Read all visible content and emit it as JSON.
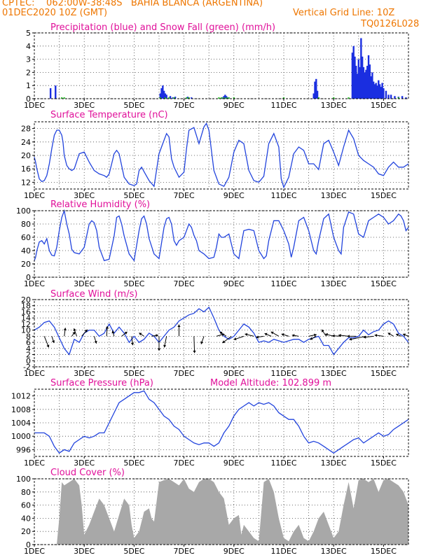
{
  "header": {
    "line1": "CPTEC:    062:00W-38:48S   BAHIA BLANCA (ARGENTINA)",
    "line2": "01DEC2020 10Z (GMT)",
    "grid_note": "Vertical Grid Line: 10Z",
    "code": "TQ0126L028"
  },
  "colors": {
    "header": "#ee7600",
    "title": "#e0109a",
    "line": "#2244dd",
    "bar": "#1a2ee0",
    "snow": "#22bb22",
    "cloud": "#a8a8a8",
    "axis": "#000000"
  },
  "x_axis": {
    "start_day": 1,
    "end_day": 16,
    "ticks": [
      {
        "day": 1,
        "label": "1DEC"
      },
      {
        "day": 3,
        "label": "3DEC"
      },
      {
        "day": 5,
        "label": "5DEC"
      },
      {
        "day": 7,
        "label": "7DEC"
      },
      {
        "day": 9,
        "label": "9DEC"
      },
      {
        "day": 11,
        "label": "11DEC"
      },
      {
        "day": 13,
        "label": "13DEC"
      },
      {
        "day": 15,
        "label": "15DEC"
      }
    ]
  },
  "chart_data": [
    {
      "id": "precip",
      "type": "bar",
      "title": "Precipitation (blue) and Snow Fall (green) (mm/h)",
      "ylim": [
        0,
        5
      ],
      "yticks": [
        0,
        1,
        2,
        3,
        4,
        5
      ],
      "series": [
        {
          "name": "Precipitation",
          "color": "#1a2ee0",
          "x": [
            1.65,
            1.85,
            6.05,
            6.1,
            6.15,
            6.2,
            6.25,
            6.3,
            6.45,
            6.55,
            6.65,
            7.15,
            7.3,
            8.55,
            8.6,
            8.65,
            8.7,
            8.75,
            12.2,
            12.25,
            12.3,
            12.35,
            13.75,
            13.8,
            13.85,
            13.9,
            13.95,
            14.0,
            14.05,
            14.1,
            14.15,
            14.2,
            14.25,
            14.3,
            14.35,
            14.4,
            14.45,
            14.5,
            14.55,
            14.6,
            14.65,
            14.7,
            14.75,
            14.8,
            14.85,
            14.9,
            14.95,
            15.0,
            15.1,
            15.2,
            15.3,
            15.45,
            15.6,
            15.75,
            15.9
          ],
          "values": [
            0.8,
            1.0,
            0.4,
            0.8,
            1.0,
            0.6,
            0.4,
            0.3,
            0.2,
            0.1,
            0.15,
            0.15,
            0.1,
            0.1,
            0.2,
            0.3,
            0.2,
            0.1,
            0.4,
            1.3,
            1.5,
            0.6,
            3.5,
            4.0,
            3.2,
            2.5,
            1.9,
            3.0,
            2.4,
            4.6,
            3.2,
            2.4,
            2.0,
            2.2,
            2.5,
            3.3,
            2.6,
            1.7,
            2.0,
            1.3,
            1.1,
            1.2,
            1.0,
            1.4,
            1.1,
            0.9,
            1.2,
            0.8,
            0.6,
            0.3,
            0.3,
            0.2,
            0.15,
            0.2,
            0.1
          ]
        },
        {
          "name": "Snow Fall",
          "color": "#22bb22",
          "x": [
            2.1,
            2.2,
            6.05,
            6.25,
            6.4,
            6.6,
            7.1,
            7.2,
            8.4,
            8.5,
            8.6,
            8.7,
            8.8,
            9.0,
            11.0,
            12.4,
            13.0,
            13.6,
            15.6
          ],
          "values": [
            0.1,
            0.1,
            0.1,
            0.1,
            0.1,
            0.1,
            0.1,
            0.1,
            0.1,
            0.1,
            0.1,
            0.1,
            0.1,
            0.1,
            0.1,
            0.1,
            0.1,
            0.1,
            0.1
          ]
        }
      ]
    },
    {
      "id": "temp",
      "type": "line",
      "title": "Surface Temperature (nC)",
      "ylim": [
        10,
        30
      ],
      "yticks": [
        12,
        16,
        20,
        24,
        28
      ],
      "x": [
        1.0,
        1.05,
        1.1,
        1.2,
        1.3,
        1.4,
        1.5,
        1.6,
        1.7,
        1.8,
        1.9,
        2.0,
        2.1,
        2.15,
        2.2,
        2.3,
        2.4,
        2.5,
        2.6,
        2.8,
        3.0,
        3.2,
        3.4,
        3.6,
        3.8,
        3.9,
        4.0,
        4.1,
        4.2,
        4.3,
        4.4,
        4.6,
        4.8,
        5.0,
        5.1,
        5.2,
        5.3,
        5.45,
        5.6,
        5.8,
        6.0,
        6.2,
        6.3,
        6.4,
        6.5,
        6.6,
        6.8,
        7.0,
        7.1,
        7.2,
        7.4,
        7.6,
        7.8,
        7.9,
        8.0,
        8.2,
        8.4,
        8.6,
        8.8,
        9.0,
        9.2,
        9.4,
        9.6,
        9.8,
        10.0,
        10.2,
        10.4,
        10.6,
        10.8,
        10.9,
        11.0,
        11.2,
        11.4,
        11.6,
        11.8,
        12.0,
        12.2,
        12.4,
        12.6,
        12.8,
        13.0,
        13.2,
        13.4,
        13.6,
        13.8,
        14.0,
        14.2,
        14.4,
        14.6,
        14.8,
        15.0,
        15.2,
        15.4,
        15.6,
        15.8,
        16.0
      ],
      "values": [
        19.5,
        18,
        16,
        13,
        12.2,
        12.5,
        14,
        17.5,
        22,
        26,
        27.5,
        27.5,
        26,
        24,
        20,
        17,
        16,
        15.5,
        16,
        20.5,
        21,
        18,
        15.5,
        14.5,
        14,
        13.5,
        14.5,
        17.5,
        20.5,
        21.5,
        20.5,
        13.5,
        11.5,
        11,
        11.5,
        15.5,
        16.5,
        14.5,
        12.5,
        10.8,
        20.5,
        24.5,
        26.5,
        25.5,
        19,
        16.5,
        13.5,
        15,
        22,
        27.5,
        28.3,
        23.5,
        28.5,
        29.5,
        27.5,
        15.5,
        11.5,
        10.8,
        13.5,
        21,
        24.5,
        23.5,
        15.5,
        12.5,
        12,
        13.8,
        23.5,
        26.5,
        22.5,
        13,
        10.5,
        13.5,
        20.5,
        22.5,
        21.5,
        17.5,
        17.5,
        15.8,
        23.5,
        24.5,
        21,
        17,
        22.5,
        27.5,
        25,
        20,
        18.5,
        17.5,
        16.5,
        14.5,
        14,
        16.5,
        18,
        16.5,
        16.5,
        17.5
      ]
    },
    {
      "id": "rh",
      "type": "line",
      "title": "Relative Humidity (%)",
      "ylim": [
        0,
        100
      ],
      "yticks": [
        0,
        20,
        40,
        60,
        80,
        100
      ],
      "x": [
        1.0,
        1.05,
        1.1,
        1.2,
        1.3,
        1.4,
        1.5,
        1.6,
        1.7,
        1.8,
        1.9,
        2.0,
        2.1,
        2.2,
        2.3,
        2.4,
        2.5,
        2.6,
        2.8,
        3.0,
        3.2,
        3.3,
        3.4,
        3.5,
        3.6,
        3.8,
        4.0,
        4.2,
        4.3,
        4.4,
        4.5,
        4.6,
        4.8,
        5.0,
        5.2,
        5.3,
        5.4,
        5.5,
        5.6,
        5.8,
        6.0,
        6.2,
        6.3,
        6.4,
        6.5,
        6.6,
        6.7,
        6.8,
        7.0,
        7.2,
        7.3,
        7.4,
        7.5,
        7.6,
        7.8,
        8.0,
        8.2,
        8.3,
        8.4,
        8.5,
        8.6,
        8.8,
        9.0,
        9.2,
        9.3,
        9.4,
        9.6,
        9.8,
        10.0,
        10.2,
        10.3,
        10.4,
        10.6,
        10.8,
        11.0,
        11.2,
        11.3,
        11.4,
        11.6,
        11.8,
        12.0,
        12.2,
        12.3,
        12.4,
        12.6,
        12.8,
        13.0,
        13.2,
        13.3,
        13.4,
        13.6,
        13.8,
        14.0,
        14.2,
        14.4,
        14.6,
        14.8,
        15.0,
        15.2,
        15.4,
        15.6,
        15.7,
        15.8,
        15.9,
        16.0
      ],
      "values": [
        25,
        30,
        40,
        53,
        55,
        50,
        58,
        40,
        33,
        32,
        45,
        70,
        90,
        100,
        80,
        65,
        42,
        37,
        35,
        45,
        80,
        85,
        82,
        70,
        45,
        25,
        27,
        62,
        90,
        92,
        80,
        62,
        35,
        25,
        70,
        88,
        92,
        80,
        58,
        35,
        28,
        75,
        88,
        90,
        80,
        55,
        48,
        55,
        60,
        80,
        75,
        63,
        55,
        40,
        35,
        28,
        30,
        45,
        65,
        60,
        60,
        65,
        35,
        28,
        50,
        70,
        72,
        70,
        40,
        28,
        32,
        55,
        85,
        85,
        70,
        50,
        30,
        45,
        85,
        90,
        70,
        40,
        35,
        55,
        88,
        95,
        60,
        40,
        35,
        75,
        98,
        95,
        65,
        60,
        85,
        90,
        95,
        90,
        80,
        85,
        95,
        92,
        85,
        70,
        75
      ]
    },
    {
      "id": "wind",
      "type": "line",
      "title": "Surface Wind (m/s)",
      "ylim": [
        -2,
        20
      ],
      "yticks": [
        -2,
        0,
        2,
        4,
        6,
        8,
        10,
        12,
        14,
        16,
        18,
        20
      ],
      "x": [
        1.0,
        1.2,
        1.4,
        1.6,
        1.8,
        2.0,
        2.2,
        2.4,
        2.6,
        2.8,
        3.0,
        3.2,
        3.4,
        3.6,
        3.8,
        4.0,
        4.2,
        4.4,
        4.6,
        4.8,
        5.0,
        5.2,
        5.4,
        5.6,
        5.8,
        6.0,
        6.2,
        6.4,
        6.6,
        6.8,
        7.0,
        7.2,
        7.4,
        7.6,
        7.8,
        8.0,
        8.2,
        8.4,
        8.6,
        8.8,
        9.0,
        9.2,
        9.4,
        9.6,
        9.8,
        10.0,
        10.2,
        10.4,
        10.6,
        10.8,
        11.0,
        11.2,
        11.4,
        11.6,
        11.8,
        12.0,
        12.2,
        12.4,
        12.6,
        12.8,
        13.0,
        13.2,
        13.4,
        13.6,
        13.8,
        14.0,
        14.2,
        14.4,
        14.6,
        14.8,
        15.0,
        15.2,
        15.4,
        15.6,
        15.8,
        16.0
      ],
      "values": [
        10,
        11,
        12.5,
        13,
        11,
        7.5,
        4,
        2,
        7,
        6,
        9,
        10,
        10,
        8,
        9,
        12,
        9,
        11,
        9,
        6,
        8,
        6,
        7,
        9,
        8,
        6,
        8,
        10,
        11,
        13,
        14,
        15,
        15.5,
        17,
        16,
        17.5,
        14,
        10,
        8,
        7,
        8,
        10,
        12,
        11,
        9,
        6,
        6.5,
        6,
        7,
        6.5,
        6,
        6.5,
        7,
        7,
        6,
        7,
        7.5,
        8,
        5,
        5,
        2,
        4,
        6,
        7.5,
        7.5,
        8,
        10,
        8.5,
        9.5,
        10,
        12,
        13,
        12,
        9,
        8,
        6
      ]
    },
    {
      "id": "pressure",
      "type": "line",
      "title": "Surface Pressure (hPa)",
      "subtitle": "Model Altitude: 102.899 m",
      "ylim": [
        994,
        1014
      ],
      "yticks": [
        996,
        1000,
        1004,
        1008,
        1012
      ],
      "x": [
        1.0,
        1.2,
        1.4,
        1.6,
        1.8,
        2.0,
        2.2,
        2.4,
        2.6,
        2.8,
        3.0,
        3.2,
        3.4,
        3.6,
        3.8,
        4.0,
        4.2,
        4.4,
        4.6,
        4.8,
        5.0,
        5.2,
        5.4,
        5.6,
        5.8,
        6.0,
        6.2,
        6.4,
        6.6,
        6.8,
        7.0,
        7.2,
        7.4,
        7.6,
        7.8,
        8.0,
        8.2,
        8.4,
        8.6,
        8.8,
        9.0,
        9.2,
        9.4,
        9.6,
        9.8,
        10.0,
        10.2,
        10.4,
        10.6,
        10.8,
        11.0,
        11.2,
        11.4,
        11.6,
        11.8,
        12.0,
        12.2,
        12.4,
        12.6,
        12.8,
        13.0,
        13.2,
        13.4,
        13.6,
        13.8,
        14.0,
        14.2,
        14.4,
        14.6,
        14.8,
        15.0,
        15.2,
        15.4,
        15.6,
        15.8,
        16.0
      ],
      "values": [
        1001,
        1001,
        1001,
        1000,
        997,
        995,
        996,
        995.5,
        998,
        999,
        1000,
        999.5,
        1000,
        1001,
        1001,
        1004,
        1007,
        1010,
        1011,
        1012,
        1013,
        1013,
        1013.5,
        1011,
        1010,
        1008,
        1006,
        1005,
        1003,
        1002,
        1000,
        999,
        998,
        997.5,
        998,
        998,
        997,
        998,
        1001,
        1003,
        1006,
        1008,
        1009,
        1010,
        1009,
        1010,
        1009.5,
        1010,
        1009,
        1007,
        1006,
        1005,
        1005,
        1003,
        1000,
        998,
        998.5,
        998,
        997,
        996,
        995,
        996,
        997,
        998,
        999,
        999.5,
        998,
        999,
        1000,
        1001,
        1000,
        1000.5,
        1002,
        1003,
        1004,
        1005
      ]
    },
    {
      "id": "cloud",
      "type": "area",
      "title": "Cloud Cover (%)",
      "ylim": [
        0,
        100
      ],
      "yticks": [
        0,
        20,
        40,
        60,
        80,
        100
      ],
      "x": [
        1.0,
        1.9,
        2.0,
        2.1,
        2.2,
        2.4,
        2.6,
        2.8,
        2.9,
        3.0,
        3.2,
        3.4,
        3.6,
        3.8,
        4.0,
        4.2,
        4.4,
        4.6,
        4.8,
        4.9,
        5.0,
        5.2,
        5.4,
        5.6,
        5.7,
        5.8,
        6.0,
        6.2,
        6.4,
        6.6,
        6.8,
        7.0,
        7.2,
        7.4,
        7.6,
        7.8,
        8.0,
        8.2,
        8.4,
        8.6,
        8.8,
        9.0,
        9.2,
        9.3,
        9.4,
        9.6,
        9.8,
        10.0,
        10.2,
        10.4,
        10.6,
        10.8,
        11.0,
        11.2,
        11.4,
        11.6,
        11.8,
        12.0,
        12.2,
        12.4,
        12.6,
        12.8,
        13.0,
        13.2,
        13.4,
        13.6,
        13.8,
        14.0,
        14.2,
        14.4,
        14.6,
        14.8,
        15.0,
        15.2,
        15.4,
        15.6,
        15.8,
        16.0
      ],
      "values": [
        0,
        0,
        40,
        95,
        90,
        95,
        100,
        90,
        60,
        15,
        30,
        50,
        70,
        60,
        40,
        20,
        45,
        70,
        60,
        30,
        10,
        20,
        50,
        55,
        40,
        35,
        95,
        98,
        100,
        95,
        90,
        100,
        85,
        80,
        95,
        100,
        100,
        95,
        80,
        70,
        30,
        40,
        45,
        15,
        30,
        20,
        10,
        5,
        95,
        100,
        80,
        40,
        10,
        5,
        20,
        30,
        10,
        5,
        20,
        40,
        50,
        30,
        10,
        20,
        60,
        95,
        55,
        98,
        100,
        95,
        100,
        80,
        98,
        100,
        95,
        90,
        80,
        60
      ]
    }
  ],
  "wind_vectors": [
    {
      "day": 1.4,
      "u": 0.8,
      "v": -2.0
    },
    {
      "day": 1.7,
      "u": 0.4,
      "v": -1.2
    },
    {
      "day": 2.2,
      "u": 0.2,
      "v": 1.5
    },
    {
      "day": 2.5,
      "u": 0.6,
      "v": 0.8
    },
    {
      "day": 2.7,
      "u": -0.5,
      "v": 1.4
    },
    {
      "day": 2.9,
      "u": 1.0,
      "v": 1.2
    },
    {
      "day": 3.4,
      "u": 0.4,
      "v": -1.3
    },
    {
      "day": 3.9,
      "u": 0.1,
      "v": 1.8
    },
    {
      "day": 4.2,
      "u": -0.3,
      "v": 1.0
    },
    {
      "day": 4.5,
      "u": 1.0,
      "v": 0.8
    },
    {
      "day": 4.9,
      "u": 0.2,
      "v": -1.6
    },
    {
      "day": 5.4,
      "u": -0.9,
      "v": 0.6
    },
    {
      "day": 5.7,
      "u": 1.2,
      "v": 0.2
    },
    {
      "day": 6.0,
      "u": 0.0,
      "v": -2.6
    },
    {
      "day": 6.3,
      "u": -0.4,
      "v": -2.0
    },
    {
      "day": 6.8,
      "u": 0.0,
      "v": 2.1
    },
    {
      "day": 7.4,
      "u": 0.1,
      "v": -3.0
    },
    {
      "day": 7.8,
      "u": -0.5,
      "v": -1.4
    },
    {
      "day": 8.3,
      "u": 1.4,
      "v": 0.4
    },
    {
      "day": 8.7,
      "u": -1.2,
      "v": 0.8
    },
    {
      "day": 8.9,
      "u": -1.6,
      "v": -1.2
    },
    {
      "day": 9.4,
      "u": -1.8,
      "v": -0.6
    },
    {
      "day": 9.8,
      "u": -1.6,
      "v": 0.4
    },
    {
      "day": 10.2,
      "u": -1.4,
      "v": -0.2
    },
    {
      "day": 10.5,
      "u": -1.2,
      "v": 0.5
    },
    {
      "day": 10.8,
      "u": -1.4,
      "v": 0.8
    },
    {
      "day": 11.2,
      "u": -1.3,
      "v": 0.4
    },
    {
      "day": 11.6,
      "u": -1.2,
      "v": 0.2
    },
    {
      "day": 12.0,
      "u": 1.4,
      "v": 0.3
    },
    {
      "day": 12.3,
      "u": -1.1,
      "v": -0.6
    },
    {
      "day": 12.7,
      "u": -0.8,
      "v": 1.2
    },
    {
      "day": 13.0,
      "u": -1.5,
      "v": 0.4
    },
    {
      "day": 13.3,
      "u": -1.6,
      "v": 0.1
    },
    {
      "day": 13.6,
      "u": -1.8,
      "v": 0.2
    },
    {
      "day": 13.9,
      "u": -1.6,
      "v": 0.0
    },
    {
      "day": 14.3,
      "u": -3.0,
      "v": -0.6
    },
    {
      "day": 14.6,
      "u": -1.8,
      "v": -0.2
    },
    {
      "day": 15.0,
      "u": -1.6,
      "v": 0.2
    },
    {
      "day": 15.4,
      "u": -1.0,
      "v": 0.6
    },
    {
      "day": 15.7,
      "u": -0.9,
      "v": 0.4
    },
    {
      "day": 16.0,
      "u": -1.0,
      "v": 0.4
    }
  ]
}
